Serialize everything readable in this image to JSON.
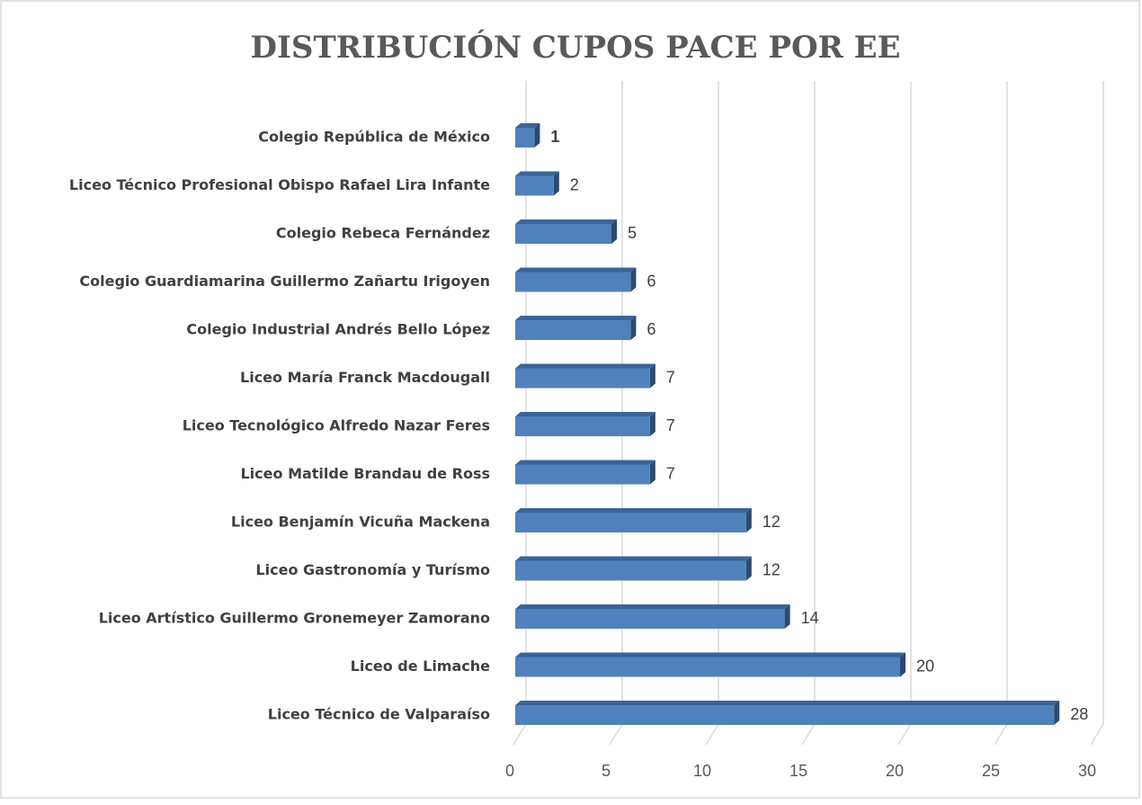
{
  "chart_data": {
    "type": "bar3d_horizontal",
    "title": "DISTRIBUCIÓN CUPOS PACE POR EE",
    "categories": [
      "Colegio República de México",
      "Liceo Técnico Profesional Obispo Rafael Lira Infante",
      "Colegio Rebeca Fernández",
      "Colegio Guardiamarina Guillermo Zañartu Irigoyen",
      "Colegio Industrial Andrés Bello López",
      "Liceo María Franck Macdougall",
      "Liceo Tecnológico Alfredo Nazar Feres",
      "Liceo Matilde Brandau de Ross",
      "Liceo Benjamín Vicuña Mackena",
      "Liceo Gastronomía y Turísmo",
      "Liceo Artístico Guillermo Gronemeyer Zamorano",
      "Liceo de Limache",
      "Liceo Técnico de Valparaíso"
    ],
    "values": [
      1,
      2,
      5,
      6,
      6,
      7,
      7,
      7,
      12,
      12,
      14,
      20,
      28
    ],
    "color": "#4f81bd",
    "xlim": [
      0,
      30
    ],
    "xticks": [
      0,
      5,
      10,
      15,
      20,
      25,
      30
    ],
    "grid": true
  }
}
